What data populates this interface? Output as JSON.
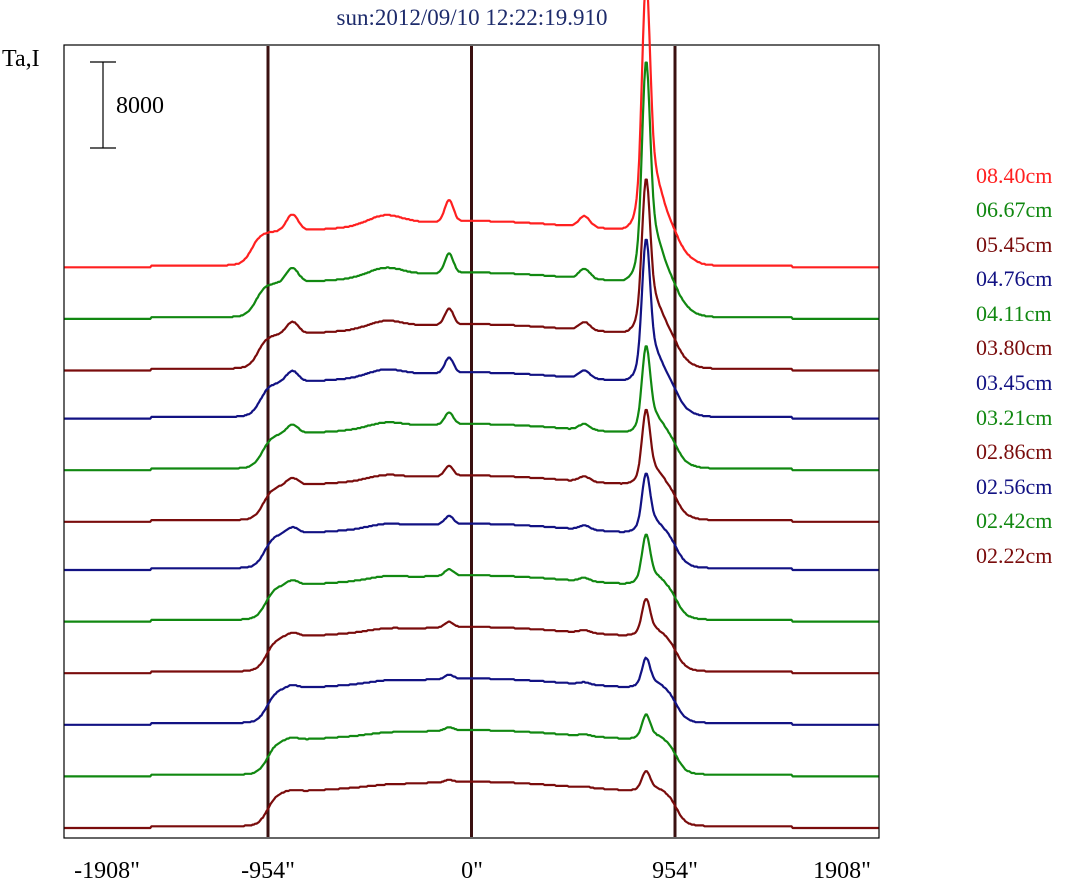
{
  "chart_data": {
    "type": "line",
    "title": "sun:2012/09/10 12:22:19.910",
    "ylabel": "Ta,I",
    "xlabel": "",
    "xlim": [
      -1908,
      1908
    ],
    "x_ticks": [
      {
        "value": -1908,
        "label": "-1908\""
      },
      {
        "value": -954,
        "label": "-954\""
      },
      {
        "value": 0,
        "label": "0\""
      },
      {
        "value": 954,
        "label": "954\""
      },
      {
        "value": 1908,
        "label": "1908\""
      }
    ],
    "vertical_lines": [
      -954,
      0,
      954
    ],
    "scale_bar": {
      "label": "8000",
      "value": 8000
    },
    "legend_position": "right",
    "legend": [
      {
        "name": "08.40cm",
        "color": "#ff2020"
      },
      {
        "name": "06.67cm",
        "color": "#118811"
      },
      {
        "name": "05.45cm",
        "color": "#7a0c0c"
      },
      {
        "name": "04.76cm",
        "color": "#121283"
      },
      {
        "name": "04.11cm",
        "color": "#118811"
      },
      {
        "name": "03.80cm",
        "color": "#7a0c0c"
      },
      {
        "name": "03.45cm",
        "color": "#121283"
      },
      {
        "name": "03.21cm",
        "color": "#118811"
      },
      {
        "name": "02.86cm",
        "color": "#7a0c0c"
      },
      {
        "name": "02.56cm",
        "color": "#121283"
      },
      {
        "name": "02.42cm",
        "color": "#118811"
      },
      {
        "name": "02.22cm",
        "color": "#7a0c0c"
      }
    ],
    "series": [
      {
        "color": "#ff2020",
        "offset": 40320,
        "peak_scale": 1.0,
        "limb_x": -1030,
        "bump_scale": 1.0
      },
      {
        "color": "#118811",
        "offset": 35520,
        "peak_scale": 0.88,
        "limb_x": -1010,
        "bump_scale": 0.9
      },
      {
        "color": "#7a0c0c",
        "offset": 30720,
        "peak_scale": 0.62,
        "limb_x": -1000,
        "bump_scale": 0.75
      },
      {
        "color": "#121283",
        "offset": 26240,
        "peak_scale": 0.57,
        "limb_x": -990,
        "bump_scale": 0.7
      },
      {
        "color": "#118811",
        "offset": 21440,
        "peak_scale": 0.35,
        "limb_x": -980,
        "bump_scale": 0.55
      },
      {
        "color": "#7a0c0c",
        "offset": 16640,
        "peak_scale": 0.3,
        "limb_x": -975,
        "bump_scale": 0.45
      },
      {
        "color": "#121283",
        "offset": 12160,
        "peak_scale": 0.24,
        "limb_x": -970,
        "bump_scale": 0.38
      },
      {
        "color": "#118811",
        "offset": 7360,
        "peak_scale": 0.2,
        "limb_x": -965,
        "bump_scale": 0.3
      },
      {
        "color": "#7a0c0c",
        "offset": 2560,
        "peak_scale": 0.15,
        "limb_x": -960,
        "bump_scale": 0.25
      },
      {
        "color": "#121283",
        "offset": -2240,
        "peak_scale": 0.12,
        "limb_x": -958,
        "bump_scale": 0.2
      },
      {
        "color": "#118811",
        "offset": -7040,
        "peak_scale": 0.1,
        "limb_x": -956,
        "bump_scale": 0.15
      },
      {
        "color": "#7a0c0c",
        "offset": -11840,
        "peak_scale": 0.08,
        "limb_x": -955,
        "bump_scale": 0.1
      }
    ]
  }
}
